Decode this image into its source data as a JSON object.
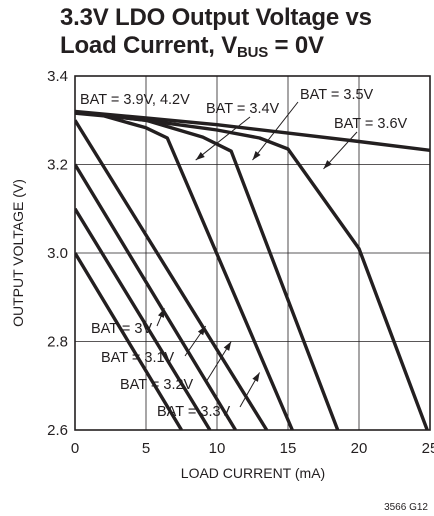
{
  "chart_data": {
    "type": "line",
    "title_main": "3.3V LDO Output Voltage vs Load Current, V",
    "title_sub": "BUS",
    "title_tail": " = 0V",
    "xlabel": "LOAD CURRENT (mA)",
    "ylabel": "OUTPUT VOLTAGE (V)",
    "xlim": [
      0,
      25
    ],
    "ylim": [
      2.6,
      3.4
    ],
    "xticks": [
      0,
      5,
      10,
      15,
      20,
      25
    ],
    "xtick_labels": [
      "0",
      "5",
      "10",
      "15",
      "20",
      "25"
    ],
    "yticks": [
      2.6,
      2.8,
      3.0,
      3.2,
      3.4
    ],
    "ytick_labels": [
      "2.6",
      "2.8",
      "3.0",
      "3.2",
      "3.4"
    ],
    "grid": true,
    "figure_id": "3566 G12",
    "series": [
      {
        "name": "BAT = 3V",
        "x": [
          0,
          7.5
        ],
        "y": [
          3.0,
          2.6
        ]
      },
      {
        "name": "BAT = 3.1V",
        "x": [
          0,
          9.5
        ],
        "y": [
          3.1,
          2.6
        ]
      },
      {
        "name": "BAT = 3.2V",
        "x": [
          0,
          11.3
        ],
        "y": [
          3.2,
          2.6
        ]
      },
      {
        "name": "BAT = 3.3V",
        "x": [
          0,
          13.5
        ],
        "y": [
          3.3,
          2.6
        ]
      },
      {
        "name": "BAT = 3.4V",
        "x": [
          0,
          2,
          5,
          6.5,
          15.3
        ],
        "y": [
          3.316,
          3.31,
          3.283,
          3.26,
          2.6
        ]
      },
      {
        "name": "BAT = 3.5V",
        "x": [
          0,
          5,
          9,
          11,
          18.5
        ],
        "y": [
          3.318,
          3.3,
          3.262,
          3.23,
          2.6
        ]
      },
      {
        "name": "BAT = 3.6V",
        "x": [
          0,
          5,
          10,
          13,
          15,
          20,
          24.8
        ],
        "y": [
          3.319,
          3.3,
          3.278,
          3.26,
          3.235,
          3.01,
          2.6
        ]
      },
      {
        "name": "BAT = 3.9V, 4.2V",
        "x": [
          0,
          5,
          10,
          15,
          20,
          25
        ],
        "y": [
          3.32,
          3.305,
          3.29,
          3.271,
          3.252,
          3.232
        ]
      }
    ],
    "annotations": [
      {
        "text": "BAT = 3.9V, 4.2V"
      },
      {
        "text": "BAT = 3.4V",
        "arrow_to": [
          8.5,
          3.21
        ]
      },
      {
        "text": "BAT = 3.5V",
        "arrow_to": [
          12.5,
          3.21
        ]
      },
      {
        "text": "BAT = 3.6V",
        "arrow_to": [
          17.5,
          3.19
        ]
      },
      {
        "text": "BAT = 3V",
        "arrow_to": [
          6.3,
          2.875
        ]
      },
      {
        "text": "BAT = 3.1V",
        "arrow_to": [
          9.2,
          2.835
        ]
      },
      {
        "text": "BAT = 3.2V",
        "arrow_to": [
          11.0,
          2.8
        ]
      },
      {
        "text": "BAT = 3.3V",
        "arrow_to": [
          13.0,
          2.73
        ]
      }
    ]
  },
  "colors": {
    "ink": "#231f20",
    "grid": "#231f20",
    "background": "#ffffff"
  }
}
